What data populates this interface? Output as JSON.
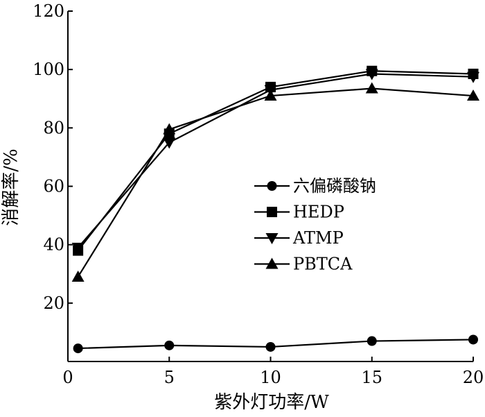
{
  "chart_data": {
    "type": "line",
    "xlabel": "紫外灯功率/W",
    "ylabel": "消解率/%",
    "xlim": [
      0,
      20
    ],
    "ylim": [
      0,
      120
    ],
    "x_ticks": [
      "0",
      "5",
      "10",
      "15",
      "20"
    ],
    "y_ticks": [
      "20",
      "40",
      "60",
      "80",
      "100",
      "120"
    ],
    "grid": false,
    "legend_position": "center-right",
    "series": [
      {
        "name": "六偏磷酸钠",
        "marker": "circle",
        "x": [
          0.5,
          5,
          10,
          15,
          20
        ],
        "y": [
          4.5,
          5.5,
          5,
          7,
          7.5
        ]
      },
      {
        "name": "HEDP",
        "marker": "square",
        "x": [
          0.5,
          5,
          10,
          15,
          20
        ],
        "y": [
          38,
          78,
          94,
          99.5,
          98.5
        ]
      },
      {
        "name": "ATMP",
        "marker": "triangle-down",
        "x": [
          0.5,
          5,
          10,
          15,
          20
        ],
        "y": [
          39,
          75,
          93,
          98.5,
          97.5
        ]
      },
      {
        "name": "PBTCA",
        "marker": "triangle-up",
        "x": [
          0.5,
          5,
          10,
          15,
          20
        ],
        "y": [
          29,
          79.5,
          91,
          93.5,
          91
        ]
      }
    ]
  }
}
